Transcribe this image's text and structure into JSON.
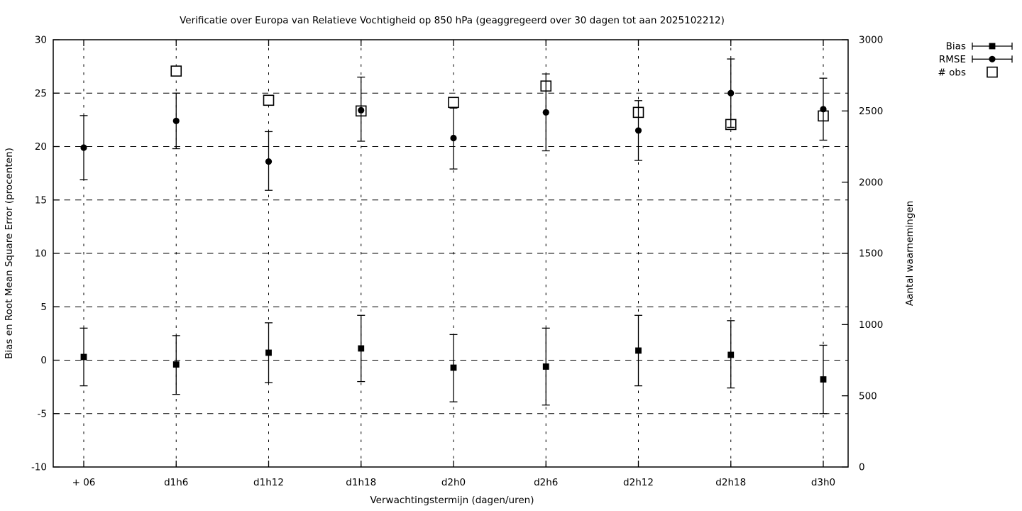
{
  "chart_data": {
    "type": "scatter",
    "title": "Verificatie over Europa van Relatieve Vochtigheid op 850 hPa (geaggregeerd over 30 dagen tot aan 2025102212)",
    "xlabel": "Verwachtingstermijn (dagen/uren)",
    "ylabel": "Bias en Root Mean Square Error (procenten)",
    "y2label": "Aantal waarnemingen",
    "categories": [
      "+ 06",
      "d1h6",
      "d1h12",
      "d1h18",
      "d2h0",
      "d2h6",
      "d2h12",
      "d2h18",
      "d3h0"
    ],
    "ylim": [
      -10,
      30
    ],
    "y2lim": [
      0,
      3000
    ],
    "y_ticks": [
      -10,
      -5,
      0,
      5,
      10,
      15,
      20,
      25,
      30
    ],
    "y2_ticks": [
      0,
      500,
      1000,
      1500,
      2000,
      2500,
      3000
    ],
    "grid": true,
    "legend_position": "top-right-outside",
    "colors": {
      "foreground": "#000000",
      "background": "#ffffff"
    },
    "series": [
      {
        "name": "Bias",
        "axis": "y1",
        "marker": "filled-square",
        "values": [
          0.3,
          -0.4,
          0.7,
          1.1,
          -0.7,
          -0.6,
          0.9,
          0.5,
          -1.8
        ],
        "err_lo": [
          -2.4,
          -3.2,
          -2.1,
          -2.0,
          -3.9,
          -4.2,
          -2.4,
          -2.6,
          -5.0
        ],
        "err_hi": [
          3.0,
          2.3,
          3.5,
          4.2,
          2.4,
          3.0,
          4.2,
          3.7,
          1.4
        ]
      },
      {
        "name": "RMSE",
        "axis": "y1",
        "marker": "filled-circle",
        "values": [
          19.9,
          22.4,
          18.6,
          23.4,
          20.8,
          23.2,
          21.5,
          25.0,
          23.5
        ],
        "err_lo": [
          16.9,
          19.8,
          15.9,
          20.5,
          17.9,
          19.6,
          18.7,
          21.8,
          20.6
        ],
        "err_hi": [
          22.9,
          25.0,
          21.4,
          26.5,
          23.6,
          26.8,
          24.3,
          28.2,
          26.4
        ]
      },
      {
        "name": "# obs",
        "axis": "y2",
        "marker": "open-square",
        "values": [
          null,
          2780,
          2575,
          2500,
          2560,
          2675,
          2490,
          2405,
          2465
        ]
      }
    ]
  }
}
